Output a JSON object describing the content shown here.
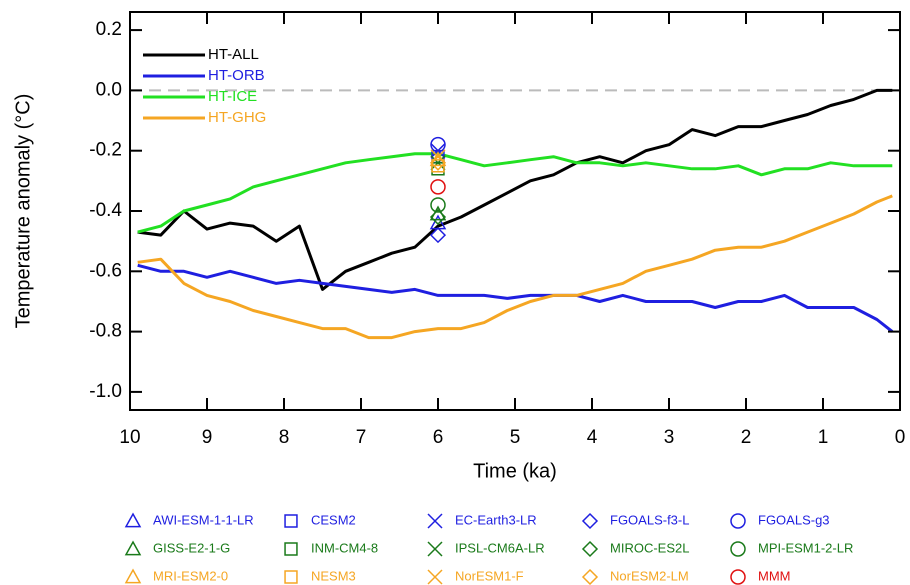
{
  "chart_data": {
    "type": "line",
    "x_label": "Time (ka)",
    "y_label": "Temperature anomaly (°C)",
    "xlim": [
      10,
      0
    ],
    "ylim": [
      -1.06,
      0.26
    ],
    "xticks": [
      10,
      9,
      8,
      7,
      6,
      5,
      4,
      3,
      2,
      1,
      0
    ],
    "yticks": [
      0.2,
      {
        "value": 0,
        "label": "0.0"
      },
      -0.2,
      -0.4,
      -0.6,
      -0.8,
      {
        "value": -1,
        "label": "-1.0"
      }
    ],
    "reference_line": 0,
    "x": [
      9.9,
      9.6,
      9.3,
      9.0,
      8.7,
      8.4,
      8.1,
      7.8,
      7.5,
      7.2,
      6.9,
      6.6,
      6.3,
      6.0,
      5.7,
      5.4,
      5.1,
      4.8,
      4.5,
      4.2,
      3.9,
      3.6,
      3.3,
      3.0,
      2.7,
      2.4,
      2.1,
      1.8,
      1.5,
      1.2,
      0.9,
      0.6,
      0.3,
      0.1
    ],
    "series": [
      {
        "name": "HT-ALL",
        "color": "#000000",
        "values": [
          -0.47,
          -0.48,
          -0.4,
          -0.46,
          -0.44,
          -0.45,
          -0.5,
          -0.45,
          -0.66,
          -0.6,
          -0.57,
          -0.54,
          -0.52,
          -0.45,
          -0.42,
          -0.38,
          -0.34,
          -0.3,
          -0.28,
          -0.24,
          -0.22,
          -0.24,
          -0.2,
          -0.18,
          -0.13,
          -0.15,
          -0.12,
          -0.12,
          -0.1,
          -0.08,
          -0.05,
          -0.03,
          0.0,
          0.0
        ]
      },
      {
        "name": "HT-ORB",
        "color": "#1f1fe0",
        "values": [
          -0.58,
          -0.6,
          -0.6,
          -0.62,
          -0.6,
          -0.62,
          -0.64,
          -0.63,
          -0.64,
          -0.65,
          -0.66,
          -0.67,
          -0.66,
          -0.68,
          -0.68,
          -0.68,
          -0.69,
          -0.68,
          -0.68,
          -0.68,
          -0.7,
          -0.68,
          -0.7,
          -0.7,
          -0.7,
          -0.72,
          -0.7,
          -0.7,
          -0.68,
          -0.72,
          -0.72,
          -0.72,
          -0.76,
          -0.8
        ]
      },
      {
        "name": "HT-ICE",
        "color": "#22e022",
        "values": [
          -0.47,
          -0.45,
          -0.4,
          -0.38,
          -0.36,
          -0.32,
          -0.3,
          -0.28,
          -0.26,
          -0.24,
          -0.23,
          -0.22,
          -0.21,
          -0.21,
          -0.23,
          -0.25,
          -0.24,
          -0.23,
          -0.22,
          -0.24,
          -0.24,
          -0.25,
          -0.24,
          -0.25,
          -0.26,
          -0.26,
          -0.25,
          -0.28,
          -0.26,
          -0.26,
          -0.24,
          -0.25,
          -0.25,
          -0.25
        ]
      },
      {
        "name": "HT-GHG",
        "color": "#f5a623",
        "values": [
          -0.57,
          -0.56,
          -0.64,
          -0.68,
          -0.7,
          -0.73,
          -0.75,
          -0.77,
          -0.79,
          -0.79,
          -0.82,
          -0.82,
          -0.8,
          -0.79,
          -0.79,
          -0.77,
          -0.73,
          -0.7,
          -0.68,
          -0.68,
          -0.66,
          -0.64,
          -0.6,
          -0.58,
          -0.56,
          -0.53,
          -0.52,
          -0.52,
          -0.5,
          -0.47,
          -0.44,
          -0.41,
          -0.37,
          -0.35
        ]
      }
    ],
    "points": [
      {
        "name": "AWI-ESM-1-1-LR",
        "color": "#1f1fe0",
        "marker": "triangle",
        "x": 6,
        "y": -0.44
      },
      {
        "name": "CESM2",
        "color": "#1f1fe0",
        "marker": "square",
        "x": 6,
        "y": -0.22
      },
      {
        "name": "EC-Earth3-LR",
        "color": "#1f1fe0",
        "marker": "x",
        "x": 6,
        "y": -0.2
      },
      {
        "name": "FGOALS-f3-L",
        "color": "#1f1fe0",
        "marker": "diamond",
        "x": 6,
        "y": -0.48
      },
      {
        "name": "FGOALS-g3",
        "color": "#1f1fe0",
        "marker": "circle",
        "x": 6,
        "y": -0.18
      },
      {
        "name": "GISS-E2-1-G",
        "color": "#1a7a1a",
        "marker": "triangle",
        "x": 6,
        "y": -0.41
      },
      {
        "name": "INM-CM4-8",
        "color": "#1a7a1a",
        "marker": "square",
        "x": 6,
        "y": -0.26
      },
      {
        "name": "IPSL-CM6A-LR",
        "color": "#1a7a1a",
        "marker": "x",
        "x": 6,
        "y": -0.24
      },
      {
        "name": "MIROC-ES2L",
        "color": "#1a7a1a",
        "marker": "diamond",
        "x": 6,
        "y": -0.42
      },
      {
        "name": "MPI-ESM1-2-LR",
        "color": "#1a7a1a",
        "marker": "circle",
        "x": 6,
        "y": -0.38
      },
      {
        "name": "MRI-ESM2-0",
        "color": "#f5a623",
        "marker": "triangle",
        "x": 6,
        "y": -0.23
      },
      {
        "name": "NESM3",
        "color": "#f5a623",
        "marker": "square",
        "x": 6,
        "y": -0.25
      },
      {
        "name": "NorESM1-F",
        "color": "#f5a623",
        "marker": "x",
        "x": 6,
        "y": -0.22
      },
      {
        "name": "NorESM2-LM",
        "color": "#f5a623",
        "marker": "diamond",
        "x": 6,
        "y": -0.24
      },
      {
        "name": "MMM",
        "color": "#e01010",
        "marker": "circle",
        "x": 6,
        "y": -0.32
      }
    ]
  }
}
